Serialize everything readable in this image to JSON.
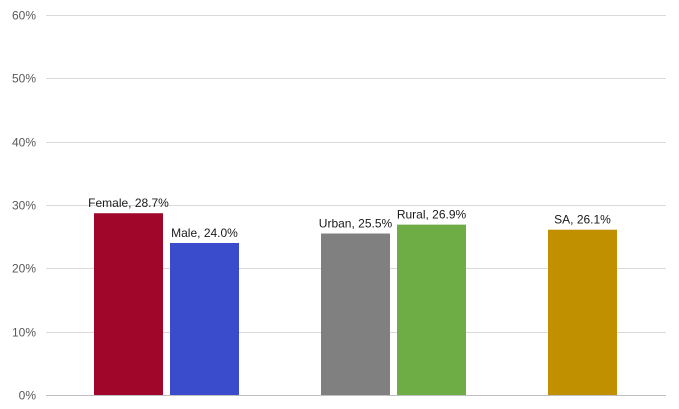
{
  "chart_data": {
    "type": "bar",
    "categories": [
      "Female",
      "Male",
      "Urban",
      "Rural",
      "SA"
    ],
    "values": [
      28.7,
      24.0,
      25.5,
      26.9,
      26.1
    ],
    "data_labels": [
      "Female, 28.7%",
      "Male, 24.0%",
      "Urban, 25.5%",
      "Rural, 26.9%",
      "SA, 26.1%"
    ],
    "colors": [
      "#A0052A",
      "#3A4BCB",
      "#808080",
      "#6EAC46",
      "#C09000"
    ],
    "ylim": [
      0,
      60
    ],
    "y_ticks": [
      0,
      10,
      20,
      30,
      40,
      50,
      60
    ],
    "y_tick_labels": [
      "0%",
      "10%",
      "20%",
      "30%",
      "40%",
      "50%",
      "60%"
    ],
    "grid": true,
    "legend": "none"
  }
}
